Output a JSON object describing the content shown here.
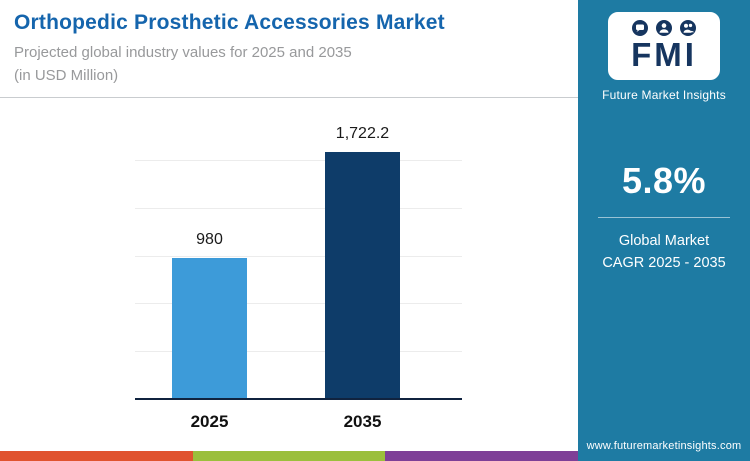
{
  "header": {
    "title": "Orthopedic Prosthetic Accessories Market",
    "subtitle_line1": "Projected global industry values for 2025 and 2035",
    "subtitle_line2": "(in USD Million)"
  },
  "sidebar": {
    "logo_text": "FMI",
    "brand_name": "Future Market Insights",
    "cagr_value": "5.8%",
    "cagr_label_line1": "Global Market",
    "cagr_label_line2": "CAGR 2025 - 2035",
    "website": "www.futuremarketinsights.com"
  },
  "chart_data": {
    "type": "bar",
    "categories": [
      "2025",
      "2035"
    ],
    "values": [
      980,
      1722.2
    ],
    "value_labels": [
      "980",
      "1,722.2"
    ],
    "title": "Orthopedic Prosthetic Accessories Market",
    "subtitle": "Projected global industry values for 2025 and 2035 (in USD Million)",
    "xlabel": "",
    "ylabel": "USD Million",
    "ylim": [
      0,
      2000
    ],
    "grid": true,
    "legend": false
  },
  "colors": {
    "accent_title": "#1565ad",
    "subtitle_gray": "#98999b",
    "panel_bg": "#1e7ba3",
    "logo_navy": "#16355f",
    "bar_2025": "#3d9bd9",
    "bar_2035": "#0e3c69",
    "strip": [
      "#e0532f",
      "#9bbf3b",
      "#7e3f97"
    ]
  }
}
